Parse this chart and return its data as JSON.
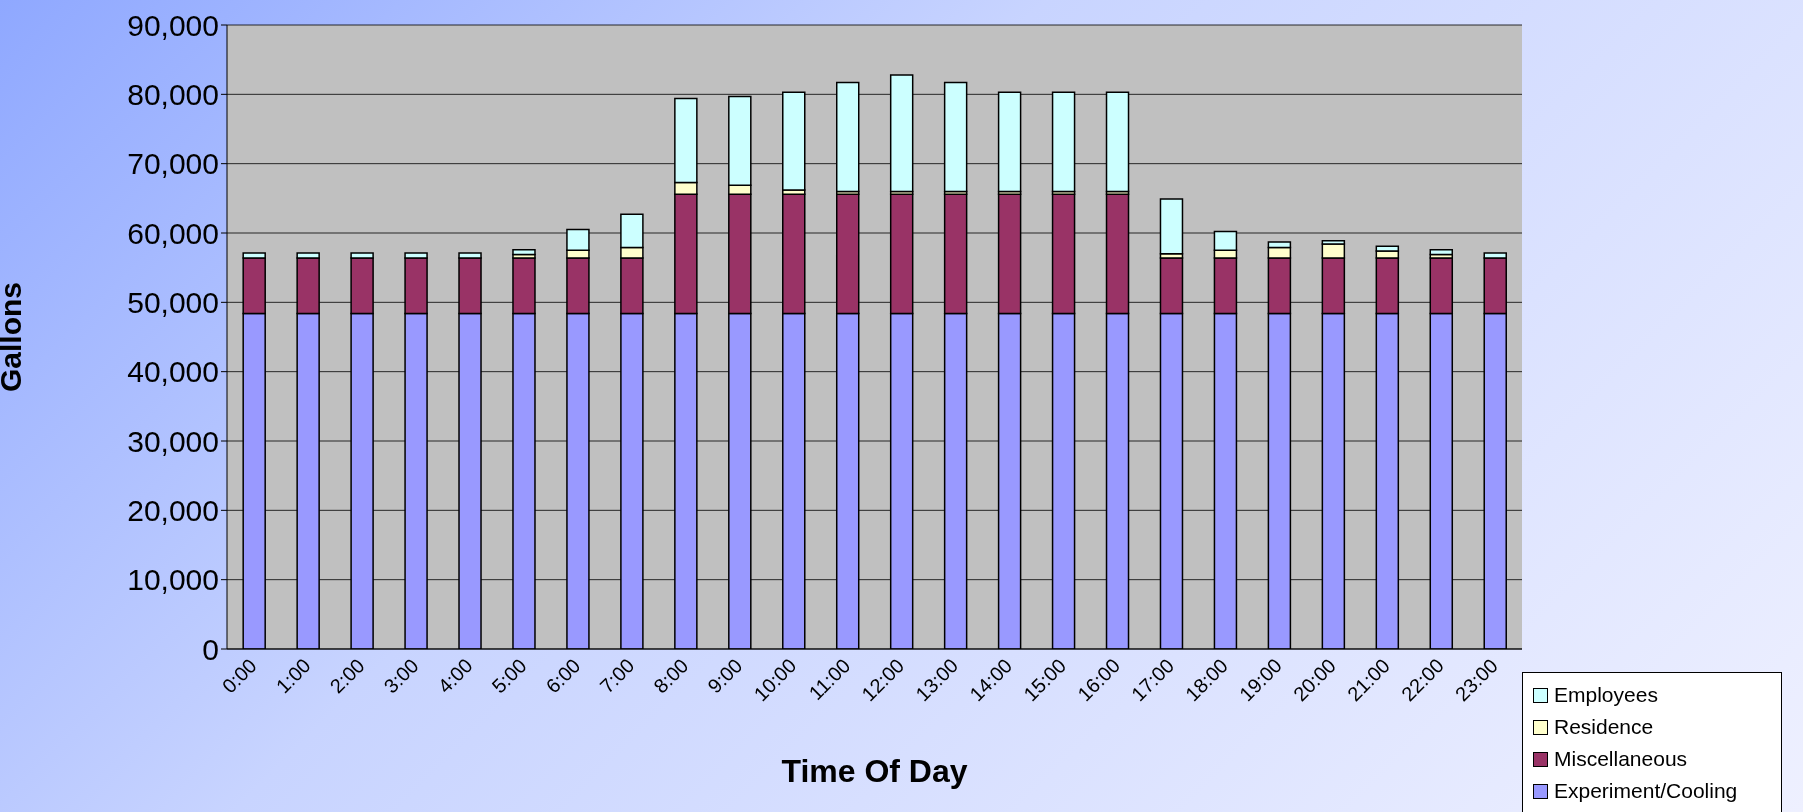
{
  "chart_data": {
    "type": "bar",
    "xlabel": "Time Of Day",
    "ylabel": "Gallons",
    "stacked": true,
    "grid": "y",
    "legend": "bottom right",
    "categories": [
      "0:00",
      "1:00",
      "2:00",
      "3:00",
      "4:00",
      "5:00",
      "6:00",
      "7:00",
      "8:00",
      "9:00",
      "10:00",
      "11:00",
      "12:00",
      "13:00",
      "14:00",
      "15:00",
      "16:00",
      "17:00",
      "18:00",
      "19:00",
      "20:00",
      "21:00",
      "22:00",
      "23:00"
    ],
    "ylim": [
      0,
      90000
    ],
    "yticks": [
      0,
      {
        "value": 10000,
        "label": "10,000"
      },
      {
        "value": 20000,
        "label": "20,000"
      },
      {
        "value": 30000,
        "label": "30,000"
      },
      {
        "value": 40000,
        "label": "40,000"
      },
      {
        "value": 50000,
        "label": "50,000"
      },
      {
        "value": 60000,
        "label": "60,000"
      },
      {
        "value": 70000,
        "label": "70,000"
      },
      {
        "value": 80000,
        "label": "80,000"
      },
      {
        "value": 90000,
        "label": "90,000"
      }
    ],
    "series": [
      {
        "name": "Experiment/Cooling",
        "color": "#9999ff",
        "values": [
          48400,
          48400,
          48400,
          48400,
          48400,
          48400,
          48400,
          48400,
          48400,
          48400,
          48400,
          48400,
          48400,
          48400,
          48400,
          48400,
          48400,
          48400,
          48400,
          48400,
          48400,
          48400,
          48400,
          48400
        ]
      },
      {
        "name": "Miscellaneous",
        "color": "#993366",
        "values": [
          8000,
          8000,
          8000,
          8000,
          8000,
          8000,
          8000,
          8000,
          17200,
          17200,
          17200,
          17200,
          17200,
          17200,
          17200,
          17200,
          17200,
          8000,
          8000,
          8000,
          8000,
          8000,
          8000,
          8000
        ]
      },
      {
        "name": "Residence",
        "color": "#ffffcc",
        "values": [
          null,
          null,
          null,
          null,
          null,
          500,
          1100,
          1500,
          1700,
          1300,
          600,
          400,
          400,
          400,
          400,
          400,
          400,
          600,
          1100,
          1500,
          2000,
          1000,
          500,
          null
        ]
      },
      {
        "name": "Employees",
        "color": "#ccffff",
        "values": [
          700,
          700,
          700,
          700,
          700,
          700,
          3000,
          4800,
          12100,
          12800,
          14100,
          15700,
          16800,
          15700,
          14300,
          14300,
          14300,
          7900,
          2700,
          800,
          500,
          700,
          700,
          700
        ]
      }
    ]
  }
}
